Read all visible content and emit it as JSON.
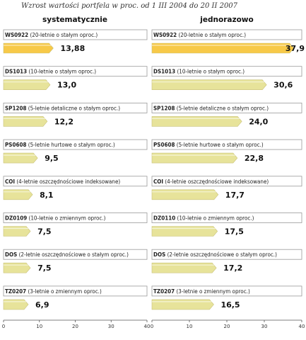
{
  "subtitle": "Wzrost wartości portfela w proc. od 1 III 2004 do 20 II 2007",
  "chart_data": {
    "type": "bar",
    "orientation": "horizontal",
    "title": "Wzrost wartości portfela w proc. od 1 III 2004 do 20 II 2007",
    "xlim": [
      0,
      40
    ],
    "xticks": [
      "0",
      "10",
      "20",
      "30",
      "40"
    ],
    "grid": false,
    "highlight_color": "#f7c948",
    "bar_color": "#e7e39a",
    "panels": [
      {
        "name": "systematycznie",
        "items": [
          {
            "code": "WS0922",
            "desc": " (20-letnie o stałym oprоc.)",
            "value": 13.88,
            "label": "13,88",
            "highlight": true
          },
          {
            "code": "DS1013",
            "desc": " (10-letnie o stałym oproc.)",
            "value": 13.0,
            "label": "13,0",
            "highlight": false
          },
          {
            "code": "SP1208",
            "desc": " (5-letnie detaliczne o stałym oproc.)",
            "value": 12.2,
            "label": "12,2",
            "highlight": false
          },
          {
            "code": "PS0608",
            "desc": " (5-letnie hurtowe o stałym oproc.)",
            "value": 9.5,
            "label": "9,5",
            "highlight": false
          },
          {
            "code": "COI",
            "desc": " (4-letnie oszczędnościowe indeksowane)",
            "value": 8.1,
            "label": "8,1",
            "highlight": false
          },
          {
            "code": "DZ0109",
            "desc": " (10-letnie o zmiennym oproc.)",
            "value": 7.5,
            "label": "7,5",
            "highlight": false
          },
          {
            "code": "DOS",
            "desc": " (2-letnie oszczędnościowe o stałym oproc.)",
            "value": 7.5,
            "label": "7,5",
            "highlight": false
          },
          {
            "code": "TZ0207",
            "desc": " (3-letnie o zmiennym oproc.)",
            "value": 6.9,
            "label": "6,9",
            "highlight": false
          }
        ]
      },
      {
        "name": "jednorazowo",
        "items": [
          {
            "code": "WS0922",
            "desc": " (20-letnie o stałym oproc.)",
            "value": 37.9,
            "label": "37,9",
            "highlight": true
          },
          {
            "code": "DS1013",
            "desc": " (10-letnie o stałym oproc.)",
            "value": 30.6,
            "label": "30,6",
            "highlight": false
          },
          {
            "code": "SP1208",
            "desc": " (5-letnie detaliczne o stałym oproc.)",
            "value": 24.0,
            "label": "24,0",
            "highlight": false
          },
          {
            "code": "PS0608",
            "desc": " (5-letnie hurtowe o stałym oproc.)",
            "value": 22.8,
            "label": "22,8",
            "highlight": false
          },
          {
            "code": "COI",
            "desc": " (4-letnie oszczędnościowe indeksowane)",
            "value": 17.7,
            "label": "17,7",
            "highlight": false
          },
          {
            "code": "DZ0110",
            "desc": " (10-letnie o zmiennym oproc.)",
            "value": 17.5,
            "label": "17,5",
            "highlight": false
          },
          {
            "code": "DOS",
            "desc": " (2-letnie oszczędnościowe o stałym oproc.)",
            "value": 17.2,
            "label": "17,2",
            "highlight": false
          },
          {
            "code": "TZ0207",
            "desc": " (3-letnie o zmiennym oproc.)",
            "value": 16.5,
            "label": "16,5",
            "highlight": false
          }
        ]
      }
    ]
  }
}
